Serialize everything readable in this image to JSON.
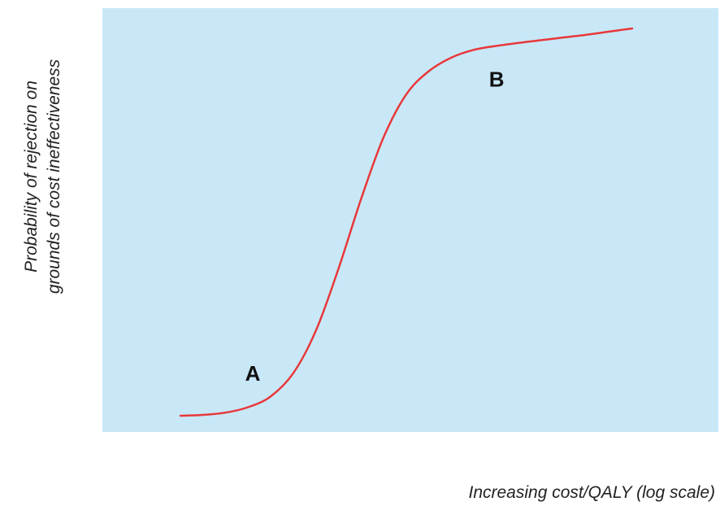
{
  "chart_data": {
    "type": "line",
    "title": "",
    "xlabel": "Increasing cost/QALY (log scale)",
    "ylabel_lines": [
      "Probability of rejection on",
      "grounds of cost ineffectiveness"
    ],
    "x_scale": "log",
    "ticks_shown": false,
    "grid": false,
    "legend": "none",
    "colors": {
      "plot_background": "#c8e8f8",
      "curve": "#e8383a",
      "text": "#222222"
    },
    "series": [
      {
        "x": [
          0.0,
          0.05,
          0.1,
          0.15,
          0.2,
          0.25,
          0.3,
          0.35,
          0.4,
          0.45,
          0.5,
          0.55,
          0.6,
          0.65,
          0.7,
          0.75,
          0.8,
          0.85,
          0.9,
          0.95,
          1.0
        ],
        "y": [
          0.0,
          0.002,
          0.008,
          0.022,
          0.05,
          0.11,
          0.22,
          0.38,
          0.56,
          0.72,
          0.83,
          0.89,
          0.925,
          0.945,
          0.955,
          0.963,
          0.97,
          0.977,
          0.984,
          0.992,
          1.0
        ]
      }
    ],
    "annotations": [
      {
        "text": "A",
        "x": 0.16,
        "y": 0.09
      },
      {
        "text": "B",
        "x": 0.7,
        "y": 0.85
      }
    ]
  }
}
